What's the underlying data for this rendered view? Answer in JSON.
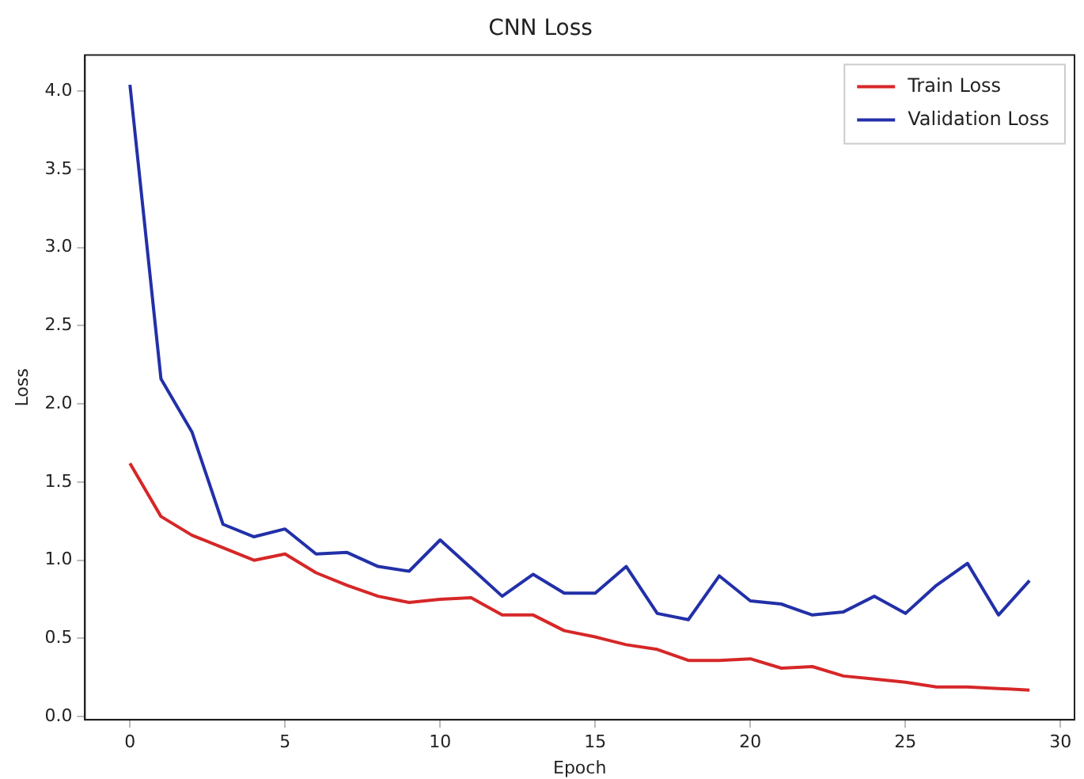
{
  "chart_data": {
    "type": "line",
    "title": "CNN Loss",
    "xlabel": "Epoch",
    "ylabel": "Loss",
    "x": [
      0,
      1,
      2,
      3,
      4,
      5,
      6,
      7,
      8,
      9,
      10,
      11,
      12,
      13,
      14,
      15,
      16,
      17,
      18,
      19,
      20,
      21,
      22,
      23,
      24,
      25,
      26,
      27,
      28,
      29
    ],
    "series": [
      {
        "name": "Train Loss",
        "color": "#d62728",
        "values": [
          1.62,
          1.28,
          1.16,
          1.08,
          1.0,
          1.04,
          0.92,
          0.84,
          0.77,
          0.73,
          0.75,
          0.76,
          0.65,
          0.65,
          0.55,
          0.51,
          0.46,
          0.43,
          0.36,
          0.36,
          0.37,
          0.31,
          0.32,
          0.26,
          0.24,
          0.22,
          0.19,
          0.19,
          0.18,
          0.17
        ]
      },
      {
        "name": "Validation Loss",
        "color": "#2230a8",
        "values": [
          4.04,
          2.16,
          1.82,
          1.23,
          1.15,
          1.2,
          1.04,
          1.05,
          0.96,
          0.93,
          1.13,
          0.95,
          0.77,
          0.91,
          0.79,
          0.79,
          0.96,
          0.66,
          0.62,
          0.9,
          0.74,
          0.72,
          0.65,
          0.67,
          0.77,
          0.66,
          0.84,
          0.98,
          0.65,
          0.87
        ]
      }
    ],
    "xlim": [
      -1.45,
      30.45
    ],
    "xticks": [
      0,
      5,
      10,
      15,
      20,
      25,
      30
    ],
    "ylim": [
      -0.02,
      4.23
    ],
    "yticks": [
      {
        "value": 0,
        "label": "0.0"
      },
      {
        "value": 0.5,
        "label": "0.5"
      },
      {
        "value": 1,
        "label": "1.0"
      },
      {
        "value": 1.5,
        "label": "1.5"
      },
      {
        "value": 2,
        "label": "2.0"
      },
      {
        "value": 2.5,
        "label": "2.5"
      },
      {
        "value": 3,
        "label": "3.0"
      },
      {
        "value": 3.5,
        "label": "3.5"
      },
      {
        "value": 4,
        "label": "4.0"
      }
    ],
    "grid": false,
    "legend": "top right",
    "marker": "none",
    "line_style": "solid"
  }
}
